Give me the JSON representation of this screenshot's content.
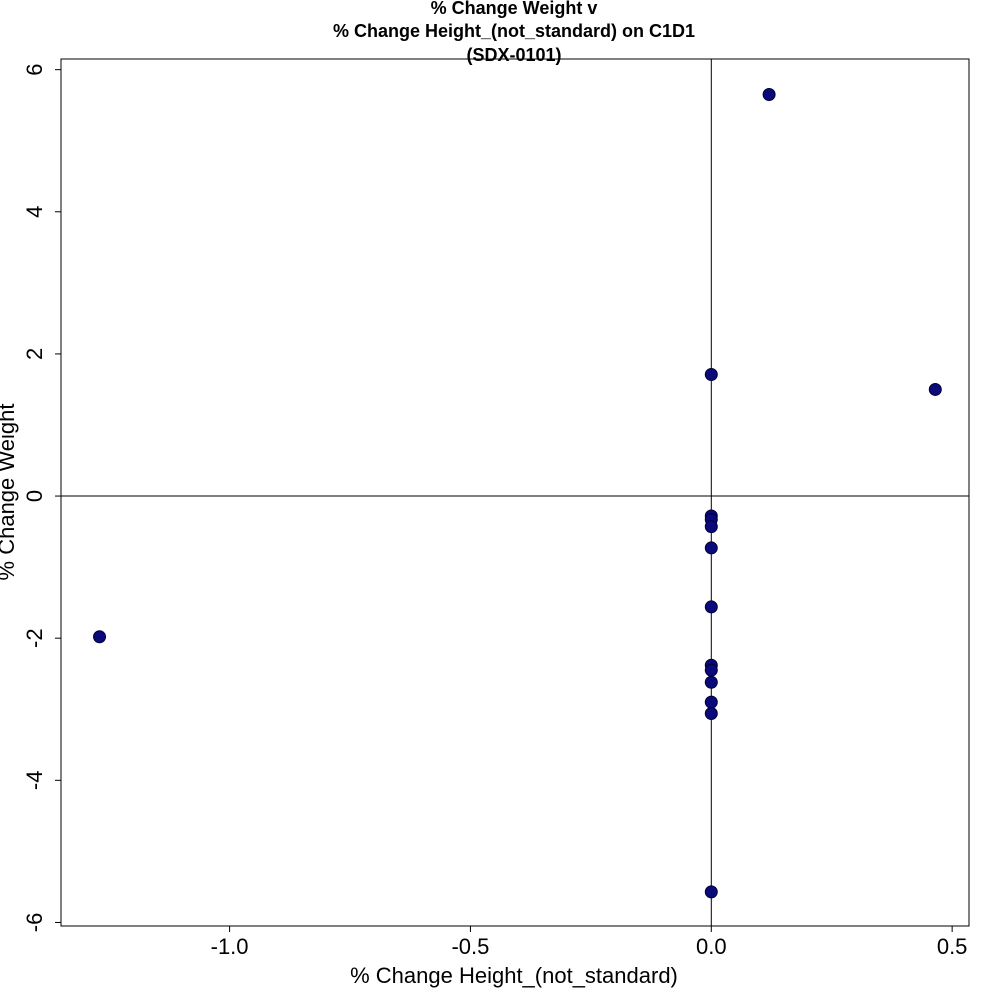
{
  "chart_data": {
    "type": "scatter",
    "title_lines": [
      "% Change Weight v",
      "% Change Height_(not_standard) on C1D1",
      "(SDX-0101)"
    ],
    "xlabel": "% Change Height_(not_standard)",
    "ylabel": "% Change Weight",
    "xlim": [
      -1.35,
      0.535
    ],
    "ylim": [
      -6.05,
      6.15
    ],
    "x_ticks": [
      -1.0,
      -0.5,
      0.0,
      0.5
    ],
    "x_tick_labels": [
      "-1.0",
      "-0.5",
      "0.0",
      "0.5"
    ],
    "y_ticks": [
      -6,
      -4,
      -2,
      0,
      2,
      4,
      6
    ],
    "y_tick_labels": [
      "-6",
      "-4",
      "-2",
      "0",
      "2",
      "4",
      "6"
    ],
    "reference_lines": {
      "x": 0,
      "y": 0
    },
    "grid": false,
    "marker_color": "#0a0a7a",
    "points": [
      {
        "x": 0.12,
        "y": 5.65
      },
      {
        "x": 0.0,
        "y": 1.71
      },
      {
        "x": 0.465,
        "y": 1.5
      },
      {
        "x": 0.0,
        "y": -0.28
      },
      {
        "x": 0.0,
        "y": -0.33
      },
      {
        "x": 0.0,
        "y": -0.43
      },
      {
        "x": 0.0,
        "y": -0.73
      },
      {
        "x": 0.0,
        "y": -1.56
      },
      {
        "x": -1.27,
        "y": -1.98
      },
      {
        "x": 0.0,
        "y": -2.38
      },
      {
        "x": 0.0,
        "y": -2.45
      },
      {
        "x": 0.0,
        "y": -2.62
      },
      {
        "x": 0.0,
        "y": -2.9
      },
      {
        "x": 0.0,
        "y": -3.06
      },
      {
        "x": 0.0,
        "y": -5.57
      }
    ]
  }
}
